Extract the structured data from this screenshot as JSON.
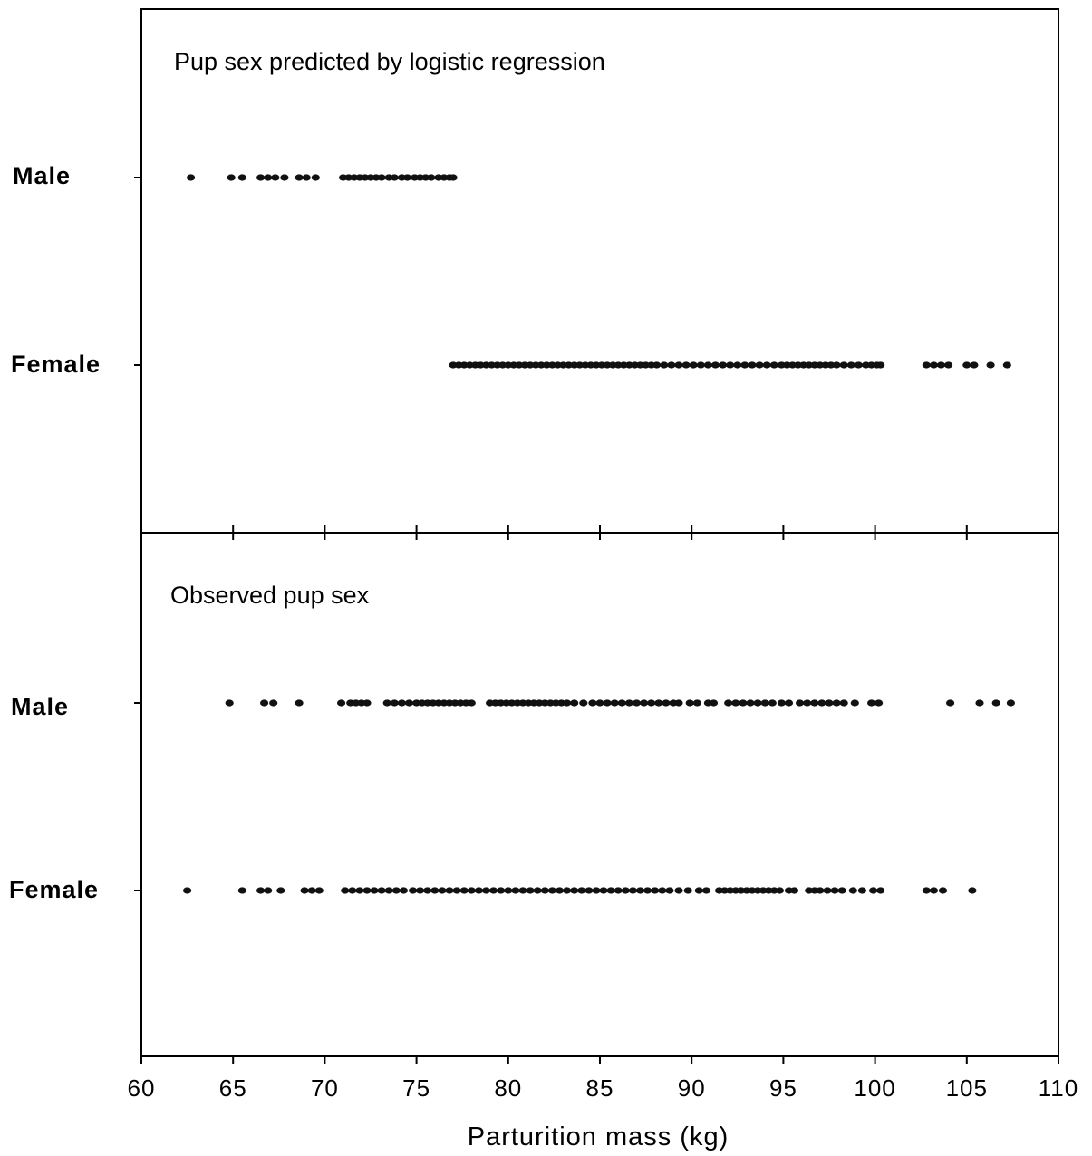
{
  "chart_data": {
    "type": "scatter",
    "xlabel": "Parturition mass (kg)",
    "xlim": [
      60,
      110
    ],
    "xticks": [
      "60",
      "65",
      "70",
      "75",
      "80",
      "85",
      "90",
      "95",
      "100",
      "105",
      "110"
    ],
    "panels": [
      {
        "title": "Pup sex predicted by logistic regression",
        "categories": [
          "Male",
          "Female"
        ],
        "series": [
          {
            "category": "Male",
            "x": [
              62.7,
              64.9,
              65.5,
              66.5,
              66.9,
              67.3,
              67.8,
              68.6,
              69.0,
              69.5,
              71.0,
              71.3,
              71.6,
              71.9,
              72.2,
              72.5,
              72.8,
              73.1,
              73.5,
              73.8,
              74.2,
              74.5,
              74.9,
              75.2,
              75.5,
              75.8,
              76.2,
              76.5,
              76.8,
              77.0
            ]
          },
          {
            "category": "Female",
            "x": [
              77.0,
              77.3,
              77.6,
              77.9,
              78.2,
              78.5,
              78.8,
              79.1,
              79.4,
              79.7,
              80.0,
              80.3,
              80.6,
              80.9,
              81.2,
              81.5,
              81.8,
              82.1,
              82.4,
              82.7,
              83.0,
              83.3,
              83.6,
              83.9,
              84.2,
              84.5,
              84.8,
              85.1,
              85.4,
              85.7,
              86.0,
              86.3,
              86.6,
              86.9,
              87.2,
              87.5,
              87.8,
              88.1,
              88.5,
              88.9,
              89.3,
              89.7,
              90.1,
              90.5,
              90.9,
              91.3,
              91.7,
              92.1,
              92.5,
              92.9,
              93.3,
              93.7,
              94.1,
              94.5,
              94.9,
              95.2,
              95.5,
              95.8,
              96.1,
              96.4,
              96.7,
              97.0,
              97.3,
              97.6,
              97.9,
              98.3,
              98.7,
              99.1,
              99.5,
              99.8,
              100.1,
              100.3,
              102.8,
              103.2,
              103.6,
              104.0,
              105.0,
              105.4,
              106.3,
              107.2
            ]
          }
        ]
      },
      {
        "title": "Observed pup sex",
        "categories": [
          "Male",
          "Female"
        ],
        "series": [
          {
            "category": "Male",
            "x": [
              64.8,
              66.7,
              67.2,
              68.6,
              70.9,
              71.4,
              71.7,
              72.0,
              72.3,
              73.4,
              73.8,
              74.2,
              74.6,
              75.0,
              75.3,
              75.6,
              75.9,
              76.2,
              76.5,
              76.8,
              77.1,
              77.4,
              77.7,
              78.0,
              79.0,
              79.3,
              79.6,
              79.9,
              80.2,
              80.5,
              80.8,
              81.1,
              81.4,
              81.7,
              82.0,
              82.3,
              82.6,
              82.9,
              83.2,
              83.6,
              84.1,
              84.6,
              85.0,
              85.4,
              85.8,
              86.2,
              86.6,
              87.0,
              87.4,
              87.8,
              88.2,
              88.6,
              89.0,
              89.3,
              89.9,
              90.3,
              90.9,
              91.2,
              92.0,
              92.4,
              92.8,
              93.2,
              93.6,
              94.0,
              94.4,
              94.9,
              95.3,
              95.9,
              96.3,
              96.7,
              97.1,
              97.5,
              97.9,
              98.3,
              98.9,
              99.8,
              100.2,
              104.1,
              105.7,
              106.6,
              107.4
            ]
          },
          {
            "category": "Female",
            "x": [
              62.5,
              65.5,
              66.5,
              66.9,
              67.6,
              68.9,
              69.3,
              69.7,
              71.1,
              71.5,
              71.9,
              72.3,
              72.7,
              73.1,
              73.5,
              73.9,
              74.3,
              74.8,
              75.2,
              75.6,
              76.0,
              76.4,
              76.8,
              77.2,
              77.6,
              78.0,
              78.4,
              78.8,
              79.2,
              79.6,
              80.0,
              80.4,
              80.8,
              81.2,
              81.6,
              82.0,
              82.4,
              82.8,
              83.2,
              83.6,
              84.0,
              84.4,
              84.8,
              85.2,
              85.6,
              86.0,
              86.4,
              86.8,
              87.2,
              87.6,
              88.0,
              88.4,
              88.8,
              89.3,
              89.8,
              90.4,
              90.8,
              91.5,
              91.8,
              92.1,
              92.4,
              92.7,
              93.0,
              93.3,
              93.6,
              93.9,
              94.2,
              94.5,
              94.8,
              95.3,
              95.6,
              96.4,
              96.7,
              97.0,
              97.4,
              97.8,
              98.2,
              98.8,
              99.3,
              99.9,
              100.3,
              102.8,
              103.2,
              103.7,
              105.3
            ]
          }
        ]
      }
    ]
  }
}
